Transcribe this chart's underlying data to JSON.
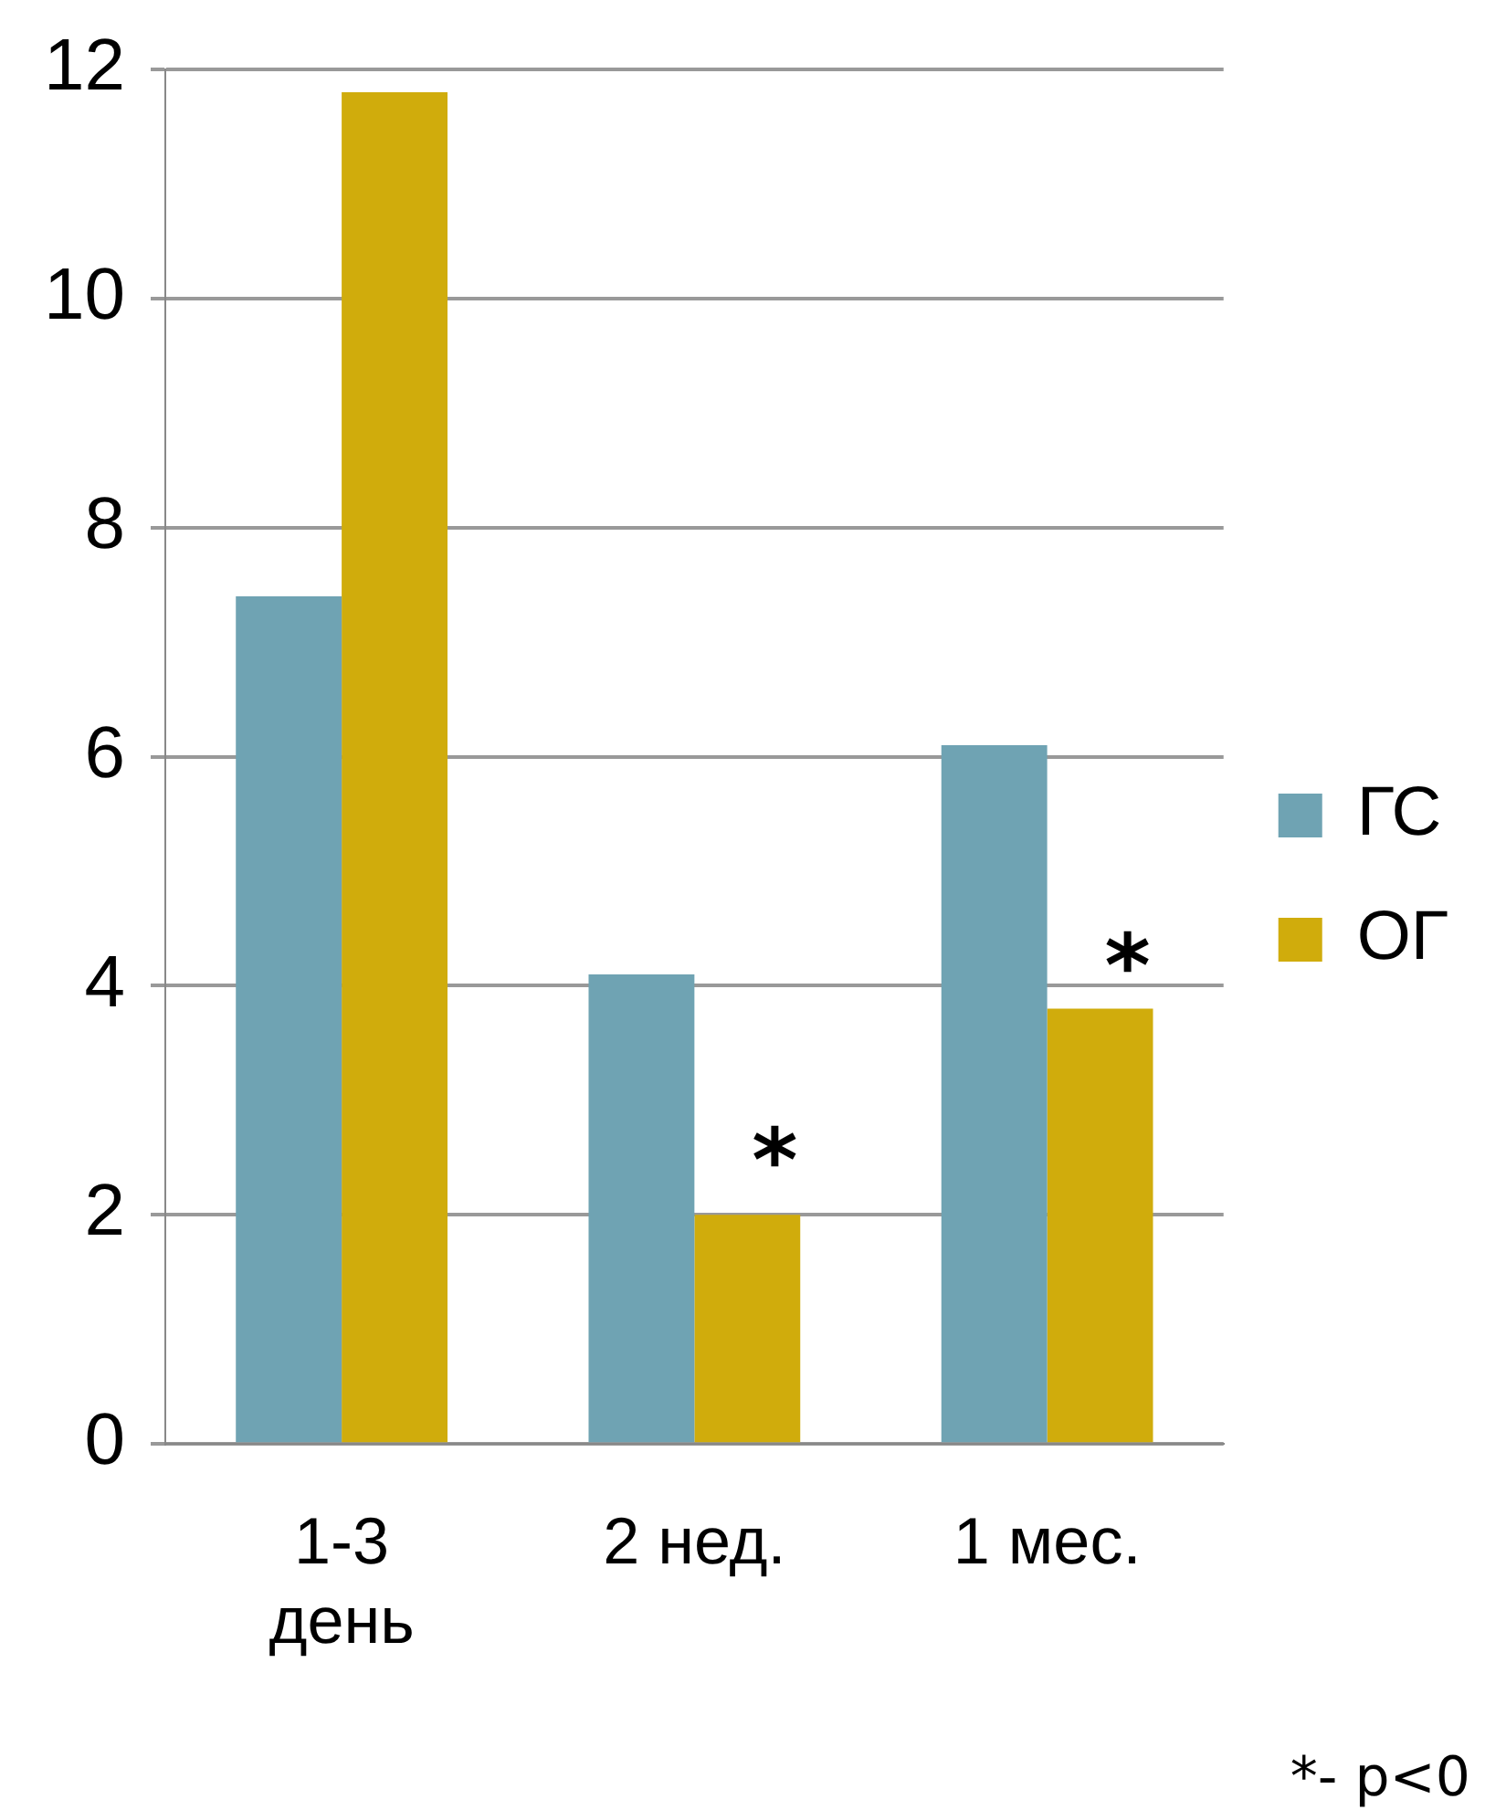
{
  "chart_data": {
    "type": "bar",
    "categories": [
      "1-3\nдень",
      "2 нед.",
      "1 мес."
    ],
    "series": [
      {
        "name": "ГС",
        "color": "#6fa3b3",
        "values": [
          7.4,
          4.1,
          6.1
        ]
      },
      {
        "name": "ОГ",
        "color": "#d0ac0c",
        "values": [
          11.8,
          2.0,
          3.8
        ]
      }
    ],
    "ylim": [
      0,
      12
    ],
    "yticks": [
      0,
      2,
      4,
      6,
      8,
      10,
      12
    ],
    "grid": "y",
    "legend": "right",
    "annotations": [
      {
        "text": "*",
        "x": "2 нед.",
        "y": 2.6
      },
      {
        "text": "*",
        "x": "1 мес.",
        "y": 4.3
      },
      "*- p<0"
    ]
  }
}
